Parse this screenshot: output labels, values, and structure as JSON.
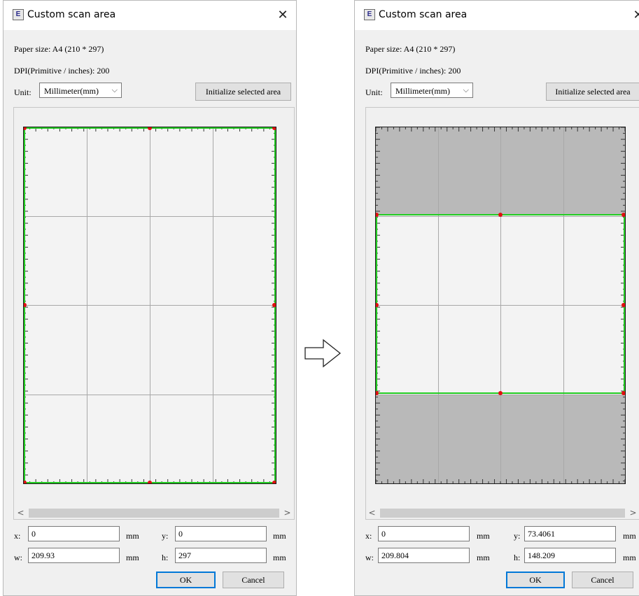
{
  "dialog": {
    "title": "Custom scan area",
    "paper_size": "Paper size:  A4  (210 * 297)",
    "dpi": "DPI(Primitive / inches):  200",
    "unit_label": "Unit:",
    "unit_value": "Millimeter(mm)",
    "init_button": "Initialize selected area",
    "ok": "OK",
    "cancel": "Cancel",
    "unit_mm": "mm"
  },
  "left": {
    "x_label": "x:",
    "x": "0",
    "y_label": "y:",
    "y": "0",
    "w_label": "w:",
    "w": "209.93",
    "h_label": "h:",
    "h": "297"
  },
  "right": {
    "x_label": "x:",
    "x": "0",
    "y_label": "y:",
    "y": "73.4061",
    "w_label": "w:",
    "w": "209.804",
    "h_label": "h:",
    "h": "148.209"
  },
  "paper": {
    "width_mm": 210,
    "height_mm": 297
  },
  "icons": {
    "app": "E",
    "close": "✕",
    "chevron": "⌵",
    "scroll_left": "<",
    "scroll_right": ">"
  },
  "colors": {
    "selection": "#22cc22",
    "handle": "#e01010",
    "shade": "#b9b9b9"
  }
}
